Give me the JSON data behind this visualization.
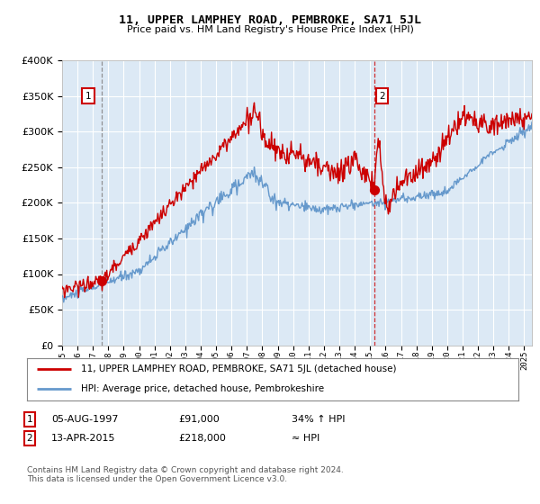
{
  "title": "11, UPPER LAMPHEY ROAD, PEMBROKE, SA71 5JL",
  "subtitle": "Price paid vs. HM Land Registry's House Price Index (HPI)",
  "plot_bg_color": "#dce9f5",
  "ylim": [
    0,
    400000
  ],
  "yticks": [
    0,
    50000,
    100000,
    150000,
    200000,
    250000,
    300000,
    350000,
    400000
  ],
  "ytick_labels": [
    "£0",
    "£50K",
    "£100K",
    "£150K",
    "£200K",
    "£250K",
    "£300K",
    "£350K",
    "£400K"
  ],
  "sale1_date": 1997.58,
  "sale1_price": 91000,
  "sale1_label": "1",
  "sale2_date": 2015.27,
  "sale2_price": 218000,
  "sale2_label": "2",
  "legend_line1": "11, UPPER LAMPHEY ROAD, PEMBROKE, SA71 5JL (detached house)",
  "legend_line2": "HPI: Average price, detached house, Pembrokeshire",
  "footer": "Contains HM Land Registry data © Crown copyright and database right 2024.\nThis data is licensed under the Open Government Licence v3.0.",
  "red_color": "#cc0000",
  "blue_color": "#6699cc",
  "xmin": 1995,
  "xmax": 2025.5
}
